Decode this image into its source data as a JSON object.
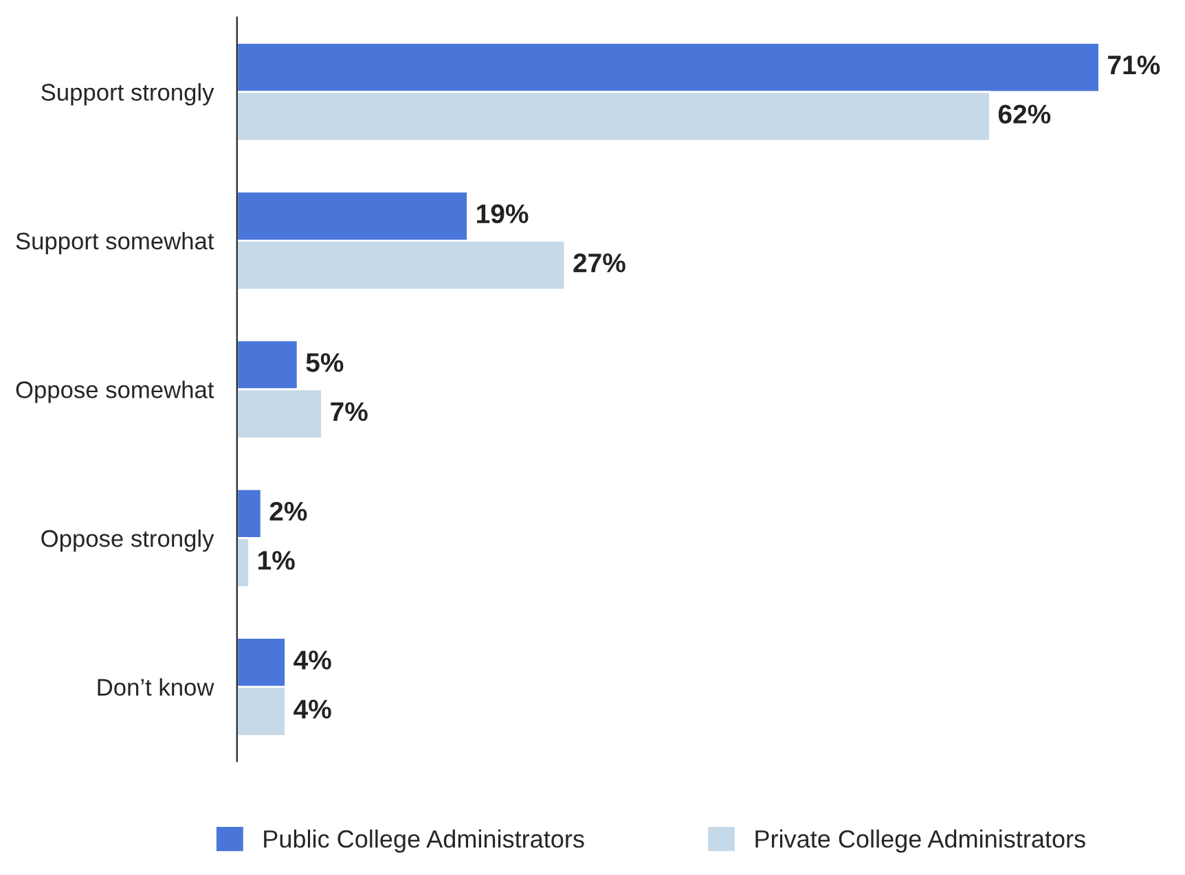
{
  "chart_data": {
    "type": "bar",
    "orientation": "horizontal",
    "categories": [
      "Support strongly",
      "Support somewhat",
      "Oppose somewhat",
      "Oppose strongly",
      "Don’t know"
    ],
    "series": [
      {
        "name": "Public College Administrators",
        "color": "#4a76d9",
        "values": [
          71,
          19,
          5,
          2,
          4
        ],
        "value_labels": [
          "71%",
          "19%",
          "5%",
          "2%",
          "4%"
        ]
      },
      {
        "name": "Private College Administrators",
        "color": "#c6d9e8",
        "values": [
          62,
          27,
          7,
          1,
          4
        ],
        "value_labels": [
          "62%",
          "27%",
          "7%",
          "1%",
          "4%"
        ]
      }
    ],
    "tick_labels": "y",
    "grid": false,
    "legend": "bottom"
  }
}
